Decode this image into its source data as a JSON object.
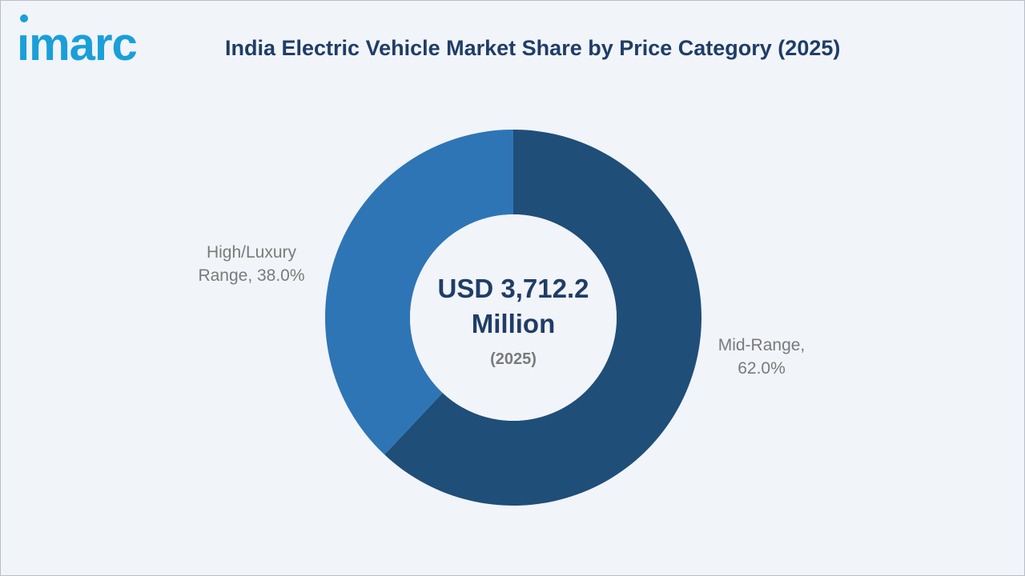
{
  "brand": {
    "logo_text": "imarc",
    "logo_color": "#1a9fd9"
  },
  "chart_data": {
    "type": "pie",
    "title": "India Electric Vehicle Market Share by Price Category (2025)",
    "center_value": "USD 3,712.2 Million",
    "center_year": "(2025)",
    "slices": [
      {
        "name": "Mid-Range",
        "value": 62.0,
        "label": "Mid-Range,\n62.0%",
        "color": "#1f4e79"
      },
      {
        "name": "High/Luxury Range",
        "value": 38.0,
        "label": "High/Luxury\nRange, 38.0%",
        "color": "#2e75b6"
      }
    ]
  }
}
